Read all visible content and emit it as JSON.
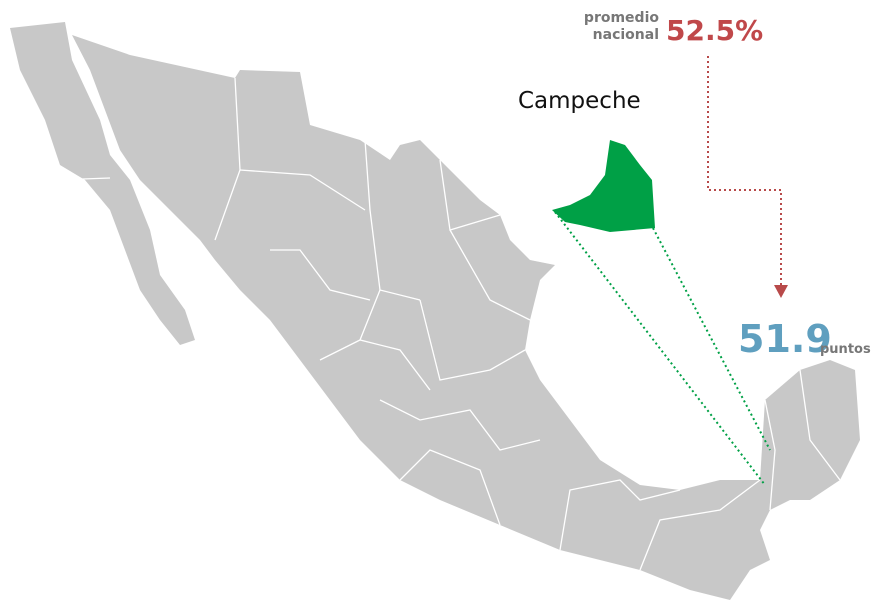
{
  "national": {
    "label": [
      "promedio",
      "nacional"
    ],
    "value": "52.5%"
  },
  "state": {
    "name": "Campeche",
    "value": "51.9",
    "unit": "puntos"
  }
}
